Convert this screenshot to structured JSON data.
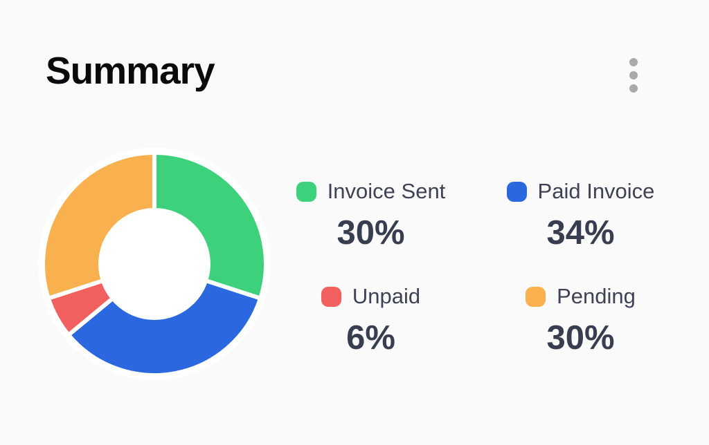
{
  "header": {
    "title": "Summary",
    "menu_icon": "kebab-menu-icon"
  },
  "colors": {
    "background": "#FAFAFA",
    "title_text": "#0A0A0C",
    "label_text": "#3F4254",
    "value_text": "#383D50",
    "menu_dots": "#A9A9A9",
    "slice_separator": "#FFFFFF",
    "green": "#3ED17C",
    "blue": "#2B67DF",
    "red": "#F15F5F",
    "orange": "#F9B04F"
  },
  "chart_data": {
    "type": "pie",
    "subtype": "donut",
    "title": "Summary",
    "direction": "clockwise",
    "start_angle_deg": 0,
    "inner_radius_ratio": 0.51,
    "legend_position": "right 2x2 grid",
    "categories": [
      "Invoice Sent",
      "Paid Invoice",
      "Unpaid",
      "Pending"
    ],
    "values": [
      30,
      34,
      6,
      30
    ],
    "series": [
      {
        "label": "Invoice Sent",
        "value": 30,
        "display": "30%",
        "color": "#3ED17C"
      },
      {
        "label": "Paid Invoice",
        "value": 34,
        "display": "34%",
        "color": "#2B67DF"
      },
      {
        "label": "Unpaid",
        "value": 6,
        "display": "6%",
        "color": "#F15F5F"
      },
      {
        "label": "Pending",
        "value": 30,
        "display": "30%",
        "color": "#F9B04F"
      }
    ]
  }
}
